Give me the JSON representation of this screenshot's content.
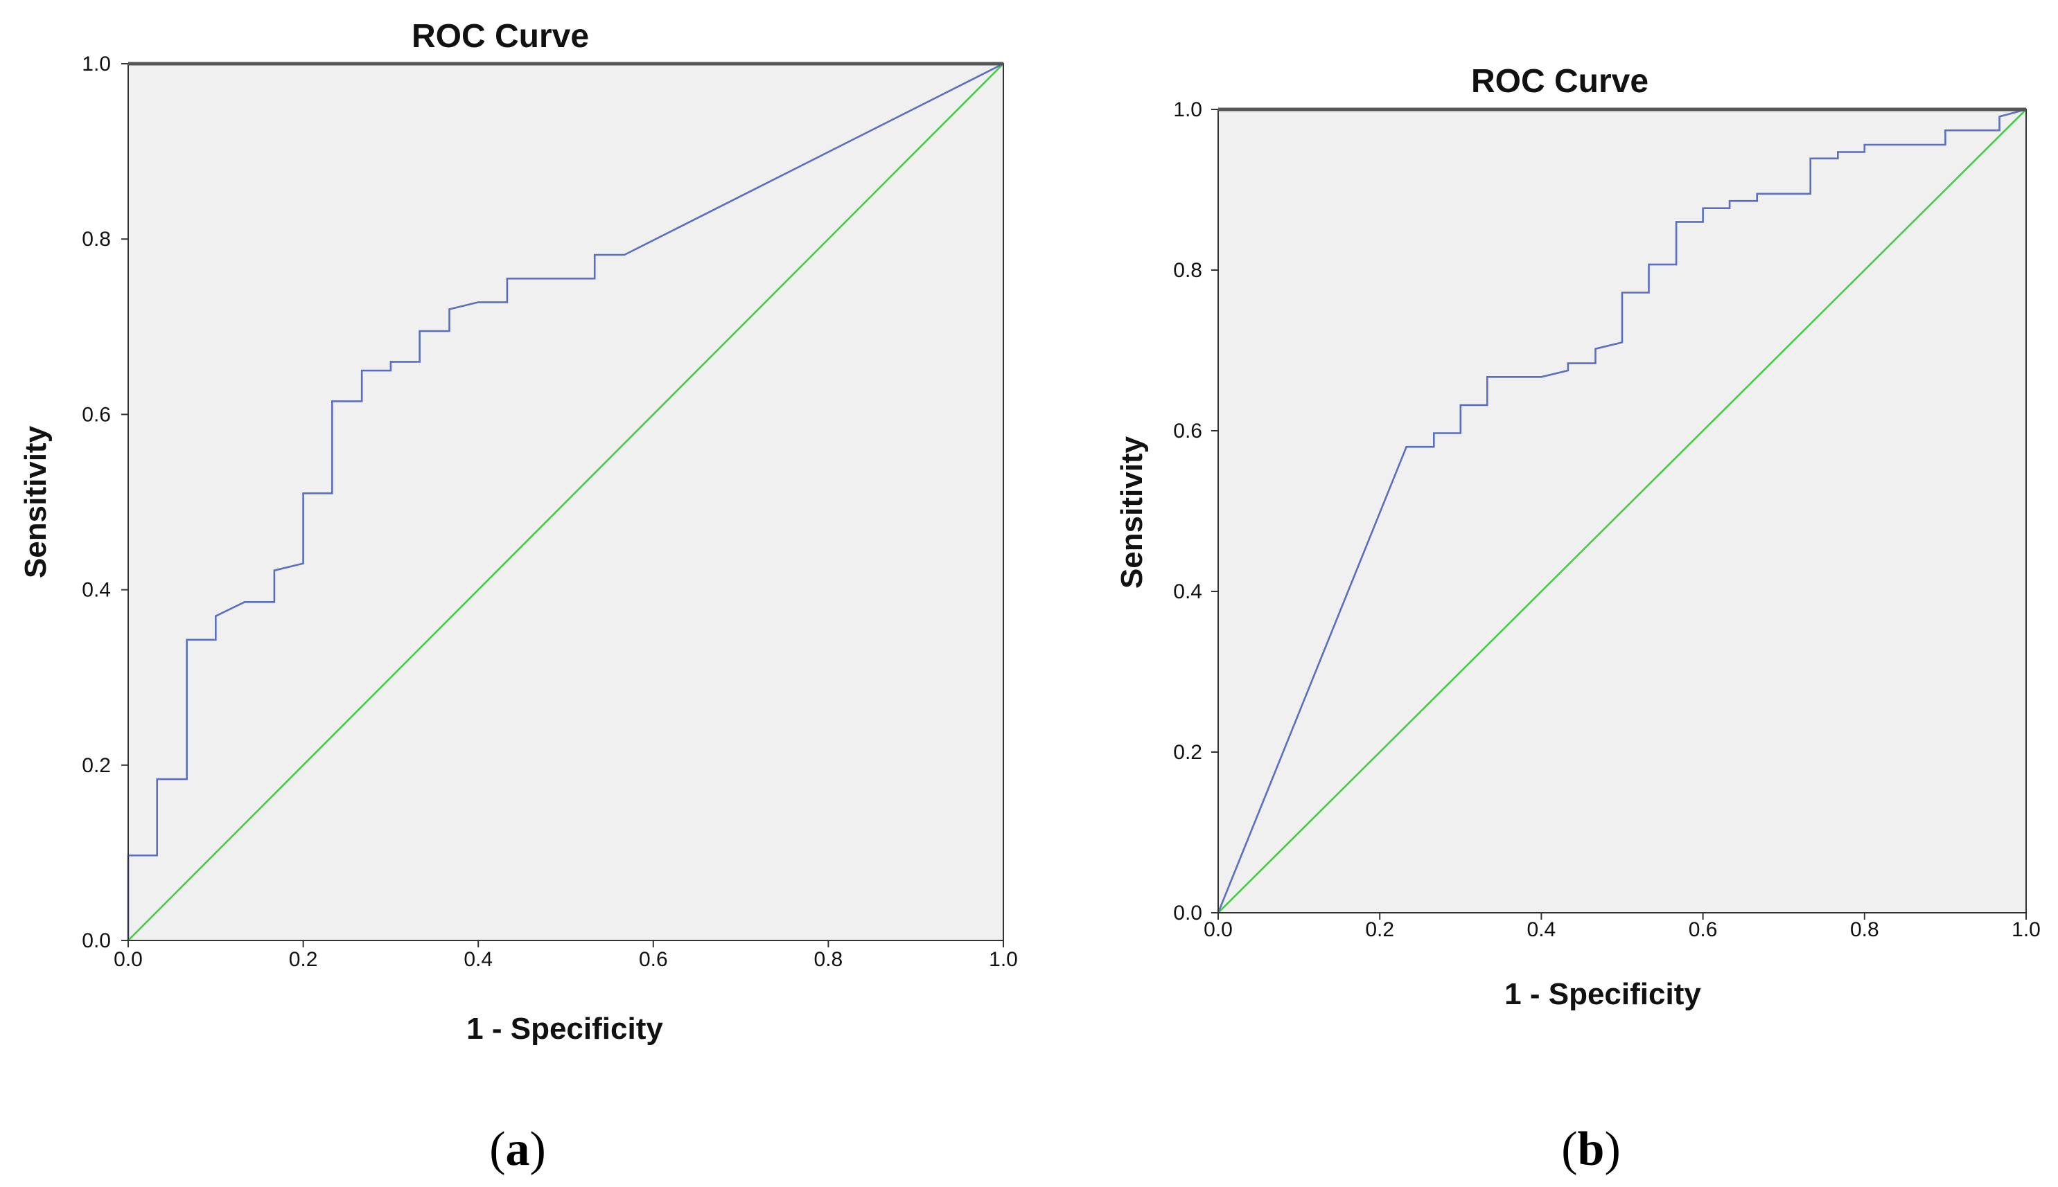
{
  "chart_data": [
    {
      "panel_label": "a",
      "type": "line",
      "title": "ROC Curve",
      "xlabel": "1 - Specificity",
      "ylabel": "Sensitivity",
      "xlim": [
        0,
        1
      ],
      "ylim": [
        0,
        1
      ],
      "xticks": [
        "0.0",
        "0.2",
        "0.4",
        "0.6",
        "0.8",
        "1.0"
      ],
      "yticks": [
        "0.0",
        "0.2",
        "0.4",
        "0.6",
        "0.8",
        "1.0"
      ],
      "series": [
        {
          "name": "ROC",
          "color": "#5a6fc0",
          "x": [
            0,
            0,
            0.033,
            0.033,
            0.067,
            0.067,
            0.1,
            0.1,
            0.133,
            0.167,
            0.167,
            0.2,
            0.2,
            0.233,
            0.233,
            0.267,
            0.267,
            0.3,
            0.3,
            0.333,
            0.333,
            0.367,
            0.367,
            0.4,
            0.433,
            0.433,
            0.533,
            0.533,
            0.567,
            1.0
          ],
          "y": [
            0,
            0.097,
            0.097,
            0.184,
            0.184,
            0.343,
            0.343,
            0.37,
            0.386,
            0.386,
            0.422,
            0.43,
            0.51,
            0.51,
            0.615,
            0.615,
            0.65,
            0.65,
            0.66,
            0.66,
            0.695,
            0.695,
            0.72,
            0.728,
            0.728,
            0.755,
            0.755,
            0.782,
            0.782,
            1.0
          ]
        },
        {
          "name": "Reference Line",
          "color": "#44cc44",
          "x": [
            0,
            1
          ],
          "y": [
            0,
            1
          ]
        }
      ]
    },
    {
      "panel_label": "b",
      "type": "line",
      "title": "ROC Curve",
      "xlabel": "1 - Specificity",
      "ylabel": "Sensitivity",
      "xlim": [
        0,
        1
      ],
      "ylim": [
        0,
        1
      ],
      "xticks": [
        "0.0",
        "0.2",
        "0.4",
        "0.6",
        "0.8",
        "1.0"
      ],
      "yticks": [
        "0.0",
        "0.2",
        "0.4",
        "0.6",
        "0.8",
        "1.0"
      ],
      "series": [
        {
          "name": "ROC",
          "color": "#5a6fc0",
          "x": [
            0,
            0.233,
            0.267,
            0.267,
            0.3,
            0.3,
            0.333,
            0.333,
            0.4,
            0.433,
            0.433,
            0.467,
            0.467,
            0.5,
            0.5,
            0.533,
            0.533,
            0.567,
            0.567,
            0.6,
            0.6,
            0.633,
            0.633,
            0.667,
            0.667,
            0.733,
            0.733,
            0.767,
            0.767,
            0.8,
            0.8,
            0.9,
            0.9,
            0.967,
            0.967,
            1.0
          ],
          "y": [
            0,
            0.58,
            0.58,
            0.597,
            0.597,
            0.632,
            0.632,
            0.667,
            0.667,
            0.675,
            0.684,
            0.684,
            0.702,
            0.71,
            0.772,
            0.772,
            0.807,
            0.807,
            0.86,
            0.86,
            0.877,
            0.877,
            0.886,
            0.886,
            0.895,
            0.895,
            0.939,
            0.939,
            0.947,
            0.947,
            0.956,
            0.956,
            0.974,
            0.974,
            0.991,
            1.0
          ]
        },
        {
          "name": "Reference Line",
          "color": "#44cc44",
          "x": [
            0,
            1
          ],
          "y": [
            0,
            1
          ]
        }
      ]
    }
  ]
}
